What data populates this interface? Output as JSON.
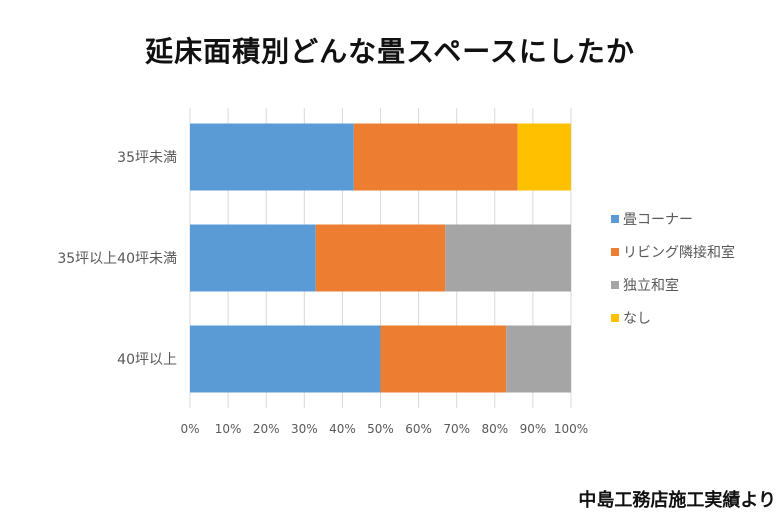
{
  "title": "延床面積別どんな畳スペースにしたか",
  "footer": "中島工務店施工実績より",
  "chart_data": {
    "type": "bar",
    "orientation": "horizontal",
    "stacked": true,
    "percent_stacked": true,
    "categories": [
      "35坪未満",
      "35坪以上40坪未満",
      "40坪以上"
    ],
    "series": [
      {
        "name": "畳コーナー",
        "color": "#5B9BD5",
        "values": [
          43,
          33,
          50
        ]
      },
      {
        "name": "リビング隣接和室",
        "color": "#ED7D31",
        "values": [
          43,
          34,
          33
        ]
      },
      {
        "name": "独立和室",
        "color": "#A5A5A5",
        "values": [
          0,
          33,
          17
        ]
      },
      {
        "name": "なし",
        "color": "#FFC000",
        "values": [
          14,
          0,
          0
        ]
      }
    ],
    "x_ticks": [
      "0%",
      "10%",
      "20%",
      "30%",
      "40%",
      "50%",
      "60%",
      "70%",
      "80%",
      "90%",
      "100%"
    ],
    "xlim": [
      0,
      100
    ],
    "grid": true,
    "legend_position": "right"
  }
}
